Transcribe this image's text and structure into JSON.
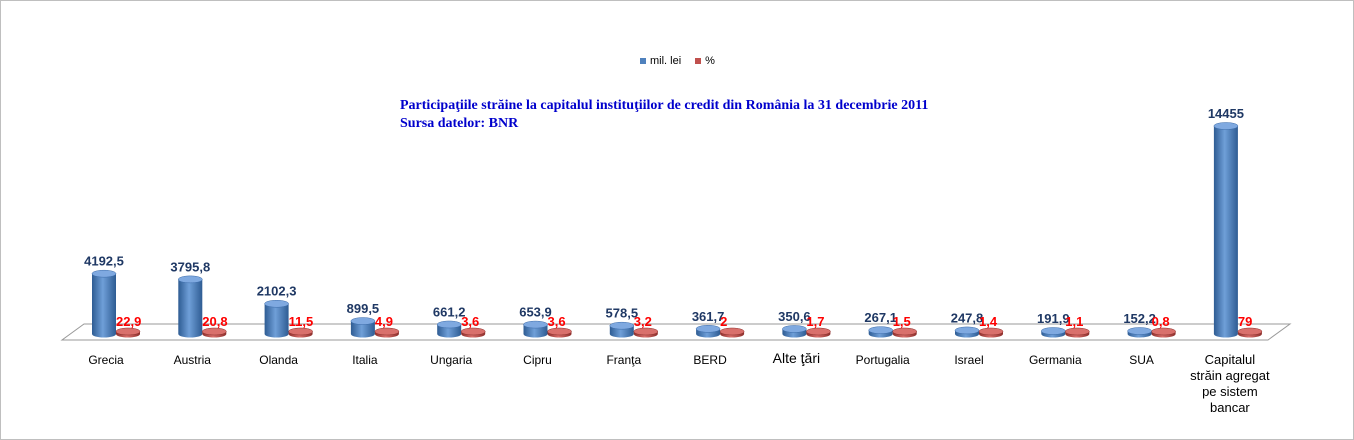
{
  "legend": {
    "mil_lei": "mil. lei",
    "pct": "%"
  },
  "title": {
    "line1": "Participaţiile străine la capitalul instituţiilor de credit din România la 31 decembrie 2011",
    "line2": "Sursa datelor: BNR"
  },
  "chart_data": {
    "type": "bar",
    "title": "Participaţiile străine la capitalul instituţiilor de credit din România la 31 decembrie 2011",
    "subtitle": "Sursa datelor: BNR",
    "categories": [
      "Grecia",
      "Austria",
      "Olanda",
      "Italia",
      "Ungaria",
      "Cipru",
      "Franţa",
      "BERD",
      "Alte ţări",
      "Portugalia",
      "Israel",
      "Germania",
      "SUA",
      "Capitalul străin agregat pe sistem bancar"
    ],
    "series": [
      {
        "name": "mil. lei",
        "color": "#4f81bd",
        "values": [
          4192.5,
          3795.8,
          2102.3,
          899.5,
          661.2,
          653.9,
          578.5,
          361.7,
          350.6,
          267.1,
          247.8,
          191.9,
          152.2,
          14455
        ],
        "labels": [
          "4192,5",
          "3795,8",
          "2102,3",
          "899,5",
          "661,2",
          "653,9",
          "578,5",
          "361,7",
          "350,6",
          "267,1",
          "247,8",
          "191,9",
          "152,2",
          "14455"
        ]
      },
      {
        "name": "%",
        "color": "#c0504d",
        "values": [
          22.9,
          20.8,
          11.5,
          4.9,
          3.6,
          3.6,
          3.2,
          2,
          1.7,
          1.5,
          1.4,
          1.1,
          0.8,
          79
        ],
        "labels": [
          "22,9",
          "20,8",
          "11,5",
          "4,9",
          "3,6",
          "3,6",
          "3,2",
          "2",
          "1,7",
          "1,5",
          "1,4",
          "1,1",
          "0,8",
          "79"
        ]
      }
    ],
    "label_colors": {
      "mil_lei": "#1f3864",
      "pct": "#ff0000"
    },
    "legend_position": "top-center",
    "grid": false
  }
}
